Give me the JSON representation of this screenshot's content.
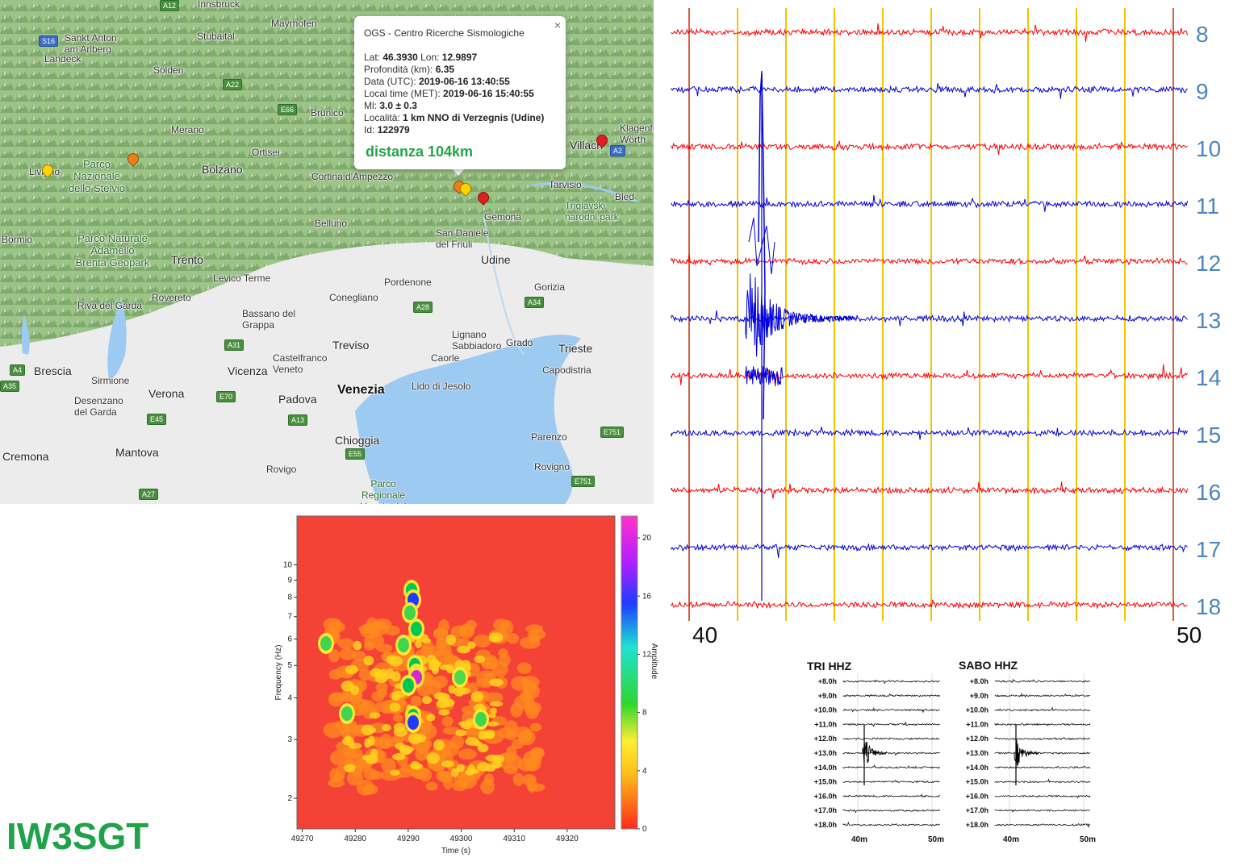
{
  "map": {
    "cities": [
      "Innsbruck",
      "Bolzano",
      "Merano",
      "Brunico",
      "Cortina d'Ampezzo",
      "Belluno",
      "Trento",
      "Rovereto",
      "Udine",
      "Pordenone",
      "Conegliano",
      "Treviso",
      "Vicenza",
      "Verona",
      "Padova",
      "Venezia",
      "Brescia",
      "Mantova",
      "Cremona",
      "Trieste",
      "Chioggia",
      "Rovigo",
      "Gorizia",
      "Capodistria",
      "Parenzo",
      "Rovigno",
      "Villach",
      "Klagenfurt Wörth",
      "Bled",
      "Bassano del Grappa",
      "Castelfranco Veneto",
      "Lido di Jesolo",
      "Lignano Sabbiadoro",
      "Grado",
      "Caorle",
      "Desenzano del Garda",
      "Sirmione",
      "Riva del Garda",
      "San Daniele del Friuli",
      "Gemona",
      "Tarvisio",
      "Livigno",
      "Bormio",
      "Levico Terme",
      "Mayrhofen",
      "Sankt Anton am Arlberg",
      "Landeck",
      "Sölden",
      "Ortisei",
      "Stubaital"
    ],
    "parks": [
      "Parco Nazionale dello Stelvio",
      "Parco Naturale Adamello Brenta Geopark",
      "Triglavski narodni park",
      "Parco Regionale Veneto del Delta del Po"
    ],
    "roads": [
      "A12",
      "S16",
      "A22",
      "E66",
      "A2",
      "E70",
      "E45",
      "A4",
      "A31",
      "A13",
      "A28",
      "A34",
      "E55",
      "E751",
      "A35",
      "A27",
      "E751"
    ],
    "popup": {
      "title": "OGS - Centro Ricerche Sismologiche",
      "close": "×",
      "lat_label": "Lat:",
      "lat": "46.3930",
      "lon_label": "Lon:",
      "lon": "12.9897",
      "depth_label": "Profondità (km):",
      "depth": "6.35",
      "utc_label": "Data (UTC):",
      "utc": "2019-06-16 13:40:55",
      "met_label": "Local time (MET):",
      "met": "2019-06-16 15:40:55",
      "ml_label": "Ml:",
      "ml": "3.0 ± 0.3",
      "loc_label": "Località:",
      "loc": "1 km NNO di Verzegnis (Udine)",
      "id_label": "Id:",
      "id": "122979",
      "distance": "distanza 104km"
    }
  },
  "seismogram": {
    "hours": [
      "8",
      "9",
      "10",
      "11",
      "12",
      "13",
      "14",
      "15",
      "16",
      "17",
      "18"
    ],
    "trace_colors": [
      "#ff0000",
      "#0000dd"
    ],
    "grid_color": "#f2c500",
    "minute_labels": [
      "40",
      "50"
    ]
  },
  "spectrogram": {
    "y_title": "Frequency (Hz)",
    "x_title": "Time (s)",
    "y_ticks": [
      "10",
      "9",
      "8",
      "7",
      "6",
      "5",
      "4",
      "3",
      "2"
    ],
    "x_ticks": [
      "49270",
      "49280",
      "49290",
      "49300",
      "49310",
      "49320"
    ],
    "colorbar_title": "Amplitude",
    "colorbar_ticks": [
      "20",
      "16",
      "12",
      "8",
      "4",
      "0"
    ]
  },
  "small_panels": [
    {
      "title": "TRI HHZ",
      "labels": [
        "+8.0h",
        "+9.0h",
        "+10.0h",
        "+11.0h",
        "+12.0h",
        "+13.0h",
        "+14.0h",
        "+15.0h",
        "+16.0h",
        "+17.0h",
        "+18.0h"
      ],
      "x_labels": [
        "40m",
        "50m"
      ]
    },
    {
      "title": "SABO HHZ",
      "labels": [
        "+8.0h",
        "+9.0h",
        "+10.0h",
        "+11.0h",
        "+12.0h",
        "+13.0h",
        "+14.0h",
        "+15.0h",
        "+16.0h",
        "+17.0h",
        "+18.0h"
      ],
      "x_labels": [
        "40m",
        "50m"
      ]
    }
  ],
  "callsign": "IW3SGT"
}
